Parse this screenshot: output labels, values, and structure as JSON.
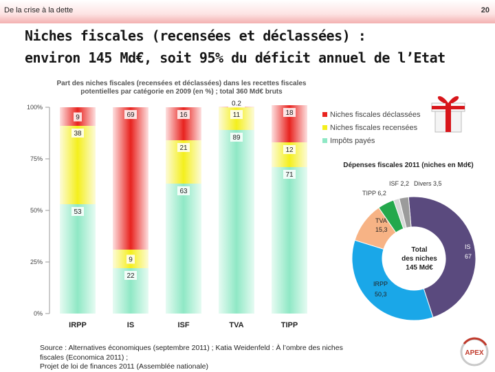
{
  "header": {
    "text": "De la crise à la dette",
    "page_number": "20"
  },
  "title": {
    "line1": "Niches fiscales (recensées et déclassées) :",
    "line2": "environ 145 Md€, soit 95% du déficit annuel de l’Etat"
  },
  "colors": {
    "declassees": "#e8231f",
    "recensees": "#f4ef1d",
    "impots": "#8fe8c5",
    "purple": "#5a4a7e",
    "blue": "#1aa7e8",
    "orange": "#f7b385",
    "green": "#24a84c",
    "gray": "#9b9b9b"
  },
  "chart_data": [
    {
      "type": "bar",
      "title_lines": [
        "Part des niches fiscales (recensées et déclassées) dans les recettes fiscales",
        "potentielles par catégorie en 2009 (en %) ; total 360 Md€ bruts"
      ],
      "categories": [
        "IRPP",
        "IS",
        "ISF",
        "TVA",
        "TIPP"
      ],
      "series": [
        {
          "name": "Impôts payés",
          "values": [
            53,
            22,
            63,
            89,
            71
          ]
        },
        {
          "name": "Niches fiscales recensées",
          "values": [
            38,
            9,
            21,
            11,
            12
          ]
        },
        {
          "name": "Niches fiscales déclassées",
          "values": [
            9,
            69,
            16,
            0.2,
            18
          ]
        }
      ],
      "labels": [
        [
          "53",
          "22",
          "63",
          "89",
          "71"
        ],
        [
          "38",
          "9",
          "21",
          "11",
          "12"
        ],
        [
          "9",
          "69",
          "16",
          "0.2",
          "18"
        ]
      ],
      "stacked": true,
      "ytick_labels": [
        "0%",
        "25%",
        "50%",
        "75%",
        "100%"
      ],
      "ylim": [
        0,
        100
      ],
      "legend": [
        "Niches fiscales déclassées",
        "Niches fiscales recensées",
        "Impôts payés"
      ]
    },
    {
      "type": "pie",
      "donut": true,
      "title": "Dépenses fiscales 2011 (niches en Md€)",
      "center_label": [
        "Total",
        "des niches",
        "145 Md€"
      ],
      "slices": [
        {
          "label": "IS",
          "value": 67,
          "value_text": "67"
        },
        {
          "label": "IRPP",
          "value": 50.3,
          "value_text": "50,3"
        },
        {
          "label": "TVA",
          "value": 15.3,
          "value_text": "15,3"
        },
        {
          "label": "TIPP",
          "value": 6.2,
          "value_text": "6,2"
        },
        {
          "label": "ISF",
          "value": 2.2,
          "value_text": "2,2"
        },
        {
          "label": "Divers",
          "value": 3.5,
          "value_text": "3,5"
        }
      ]
    }
  ],
  "source": [
    "Source : Alternatives économiques (septembre 2011) ; Katia Weidenfeld : À l’ombre des niches",
    "fiscales (Economica 2011) ;",
    "Projet de loi de finances 2011 (Assemblée nationale)"
  ],
  "logo": {
    "text": "APEX"
  }
}
